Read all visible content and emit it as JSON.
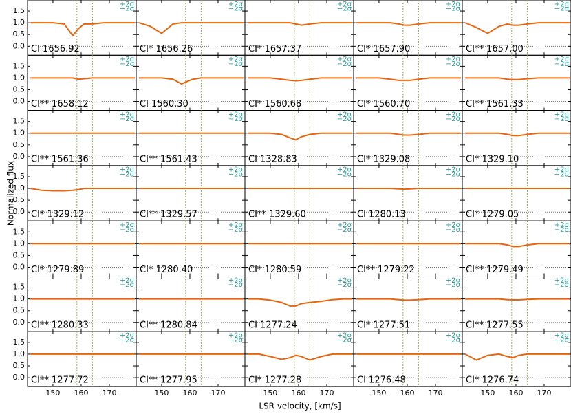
{
  "chart_data": {
    "type": "line",
    "x_label": "LSR velocity, [km/s]",
    "y_label": "Normalized flux",
    "sigma_labels": [
      "+2σ",
      "−2σ"
    ],
    "xlim": [
      141,
      179.5
    ],
    "ylim": [
      -0.38,
      1.97
    ],
    "xticks": [
      150,
      160,
      170
    ],
    "yticks": [
      {
        "value": 0,
        "label": "0.0"
      },
      {
        "value": 0.5,
        "label": "0.5"
      },
      {
        "value": 1,
        "label": "1.0"
      },
      {
        "value": 1.5,
        "label": "1.5"
      }
    ],
    "reference_velocities": [
      158.5,
      164
    ],
    "model_color": "#e8650e",
    "x": [
      142,
      146,
      150,
      154,
      157,
      159,
      161,
      164,
      168,
      172,
      176,
      179
    ],
    "panels": [
      {
        "label": "CI 1656.92",
        "model": [
          1,
          1,
          1,
          0.95,
          0.45,
          0.75,
          0.95,
          0.95,
          1,
          1,
          1,
          1
        ]
      },
      {
        "label": "CI* 1656.26",
        "model": [
          1,
          0.85,
          0.55,
          0.95,
          1,
          1,
          1,
          1,
          1,
          1,
          1,
          1
        ]
      },
      {
        "label": "CI* 1657.37",
        "model": [
          1,
          1,
          1,
          1,
          1,
          0.95,
          0.9,
          0.95,
          1,
          1,
          1,
          1
        ]
      },
      {
        "label": "CI* 1657.90",
        "model": [
          1,
          1,
          1,
          1,
          0.95,
          0.9,
          0.9,
          0.95,
          1,
          1,
          1,
          1
        ]
      },
      {
        "label": "CI** 1657.00",
        "model": [
          1,
          0.8,
          0.55,
          0.85,
          0.95,
          0.9,
          0.9,
          0.95,
          1,
          1,
          1,
          1
        ]
      },
      {
        "label": "CI** 1658.12",
        "model": [
          1,
          1,
          1,
          1,
          1,
          0.95,
          0.97,
          1,
          1,
          1,
          1,
          1
        ]
      },
      {
        "label": "CI 1560.30",
        "model": [
          1,
          1,
          1,
          0.95,
          0.75,
          0.85,
          0.95,
          1,
          1,
          1,
          1,
          1
        ]
      },
      {
        "label": "CI* 1560.68",
        "model": [
          1,
          1,
          1,
          0.95,
          0.9,
          0.88,
          0.9,
          0.95,
          1,
          1,
          1,
          1
        ]
      },
      {
        "label": "CI* 1560.70",
        "model": [
          1,
          1,
          1,
          0.95,
          0.9,
          0.9,
          0.9,
          0.95,
          1,
          1,
          1,
          1
        ]
      },
      {
        "label": "CI** 1561.33",
        "model": [
          1,
          1,
          1,
          1,
          0.95,
          0.93,
          0.93,
          0.97,
          1,
          1,
          1,
          1
        ]
      },
      {
        "label": "CI** 1561.36",
        "model": [
          1,
          1,
          1,
          1,
          1,
          1,
          1,
          1,
          1,
          1,
          1,
          1
        ]
      },
      {
        "label": "CI** 1561.43",
        "model": [
          1,
          1,
          1,
          1,
          1,
          1,
          1,
          1,
          1,
          1,
          1,
          1
        ]
      },
      {
        "label": "CI 1328.83",
        "model": [
          1,
          1,
          1,
          0.95,
          0.8,
          0.72,
          0.85,
          0.95,
          1,
          1,
          1,
          1
        ]
      },
      {
        "label": "CI* 1329.08",
        "model": [
          1,
          1,
          1,
          1,
          0.95,
          0.92,
          0.92,
          0.95,
          1,
          1,
          1,
          1
        ]
      },
      {
        "label": "CI* 1329.10",
        "model": [
          1,
          1,
          1,
          1,
          0.95,
          0.9,
          0.9,
          0.95,
          1,
          1,
          1,
          1
        ]
      },
      {
        "label": "CI* 1329.12",
        "model": [
          1,
          0.92,
          0.9,
          0.9,
          0.92,
          0.95,
          1,
          1,
          1,
          1,
          1,
          1
        ]
      },
      {
        "label": "CI** 1329.57",
        "model": [
          1,
          1,
          1,
          1,
          1,
          1,
          1,
          1,
          1,
          1,
          1,
          1
        ]
      },
      {
        "label": "CI** 1329.60",
        "model": [
          1,
          1,
          1,
          1,
          1,
          1,
          1,
          1,
          1,
          1,
          1,
          1
        ]
      },
      {
        "label": "CI 1280.13",
        "model": [
          1,
          1,
          1,
          1,
          0.98,
          0.97,
          0.98,
          1,
          1,
          1,
          1,
          1
        ]
      },
      {
        "label": "CI* 1279.05",
        "model": [
          1,
          1,
          1,
          1,
          1,
          1,
          1,
          1,
          1,
          1,
          1,
          1
        ]
      },
      {
        "label": "CI* 1279.89",
        "model": [
          1,
          1,
          1,
          1,
          1,
          1,
          1,
          1,
          1,
          1,
          1,
          1
        ]
      },
      {
        "label": "CI* 1280.40",
        "model": [
          1,
          1,
          1,
          1,
          1,
          1,
          1,
          1,
          1,
          1,
          1,
          1
        ]
      },
      {
        "label": "CI* 1280.59",
        "model": [
          1,
          1,
          1,
          1,
          1,
          1,
          1,
          1,
          1,
          1,
          1,
          1
        ]
      },
      {
        "label": "CI** 1279.22",
        "model": [
          1,
          1,
          1,
          1,
          1,
          1,
          1,
          1,
          1,
          1,
          1,
          1
        ]
      },
      {
        "label": "CI** 1279.49",
        "model": [
          1,
          1,
          1,
          1,
          0.95,
          0.88,
          0.88,
          0.95,
          1,
          1,
          1,
          1
        ]
      },
      {
        "label": "CI** 1280.33",
        "model": [
          1,
          1,
          1,
          1,
          1,
          1,
          1,
          1,
          1,
          1,
          1,
          1
        ]
      },
      {
        "label": "CI** 1280.84",
        "model": [
          1,
          1,
          1,
          1,
          1,
          1,
          1,
          1,
          1,
          1,
          1,
          1
        ]
      },
      {
        "label": "CI 1277.24",
        "model": [
          1,
          1,
          0.95,
          0.85,
          0.7,
          0.7,
          0.8,
          0.85,
          0.9,
          0.97,
          1,
          1
        ]
      },
      {
        "label": "CI* 1277.51",
        "model": [
          1,
          1,
          1,
          1,
          0.97,
          0.95,
          0.95,
          0.97,
          1,
          1,
          1,
          1
        ]
      },
      {
        "label": "CI** 1277.55",
        "model": [
          1,
          1,
          1,
          1,
          0.97,
          0.96,
          0.96,
          0.98,
          1,
          1,
          1,
          1
        ]
      },
      {
        "label": "CI** 1277.72",
        "model": [
          1,
          1,
          1,
          1,
          1,
          1,
          1,
          1,
          1,
          1,
          1,
          1
        ]
      },
      {
        "label": "CI** 1277.95",
        "model": [
          1,
          1,
          1,
          1,
          1,
          1,
          1,
          1,
          1,
          1,
          1,
          1
        ]
      },
      {
        "label": "CI* 1277.28",
        "model": [
          1,
          1,
          0.9,
          0.78,
          0.85,
          0.95,
          0.9,
          0.75,
          0.9,
          1,
          1,
          1
        ]
      },
      {
        "label": "CI 1276.48",
        "model": [
          1,
          1,
          1,
          1,
          1,
          1,
          1,
          1,
          1,
          1,
          1,
          1
        ]
      },
      {
        "label": "CI* 1276.74",
        "model": [
          1,
          0.75,
          0.95,
          1,
          0.9,
          0.85,
          0.95,
          1,
          1,
          1,
          1,
          1
        ]
      }
    ]
  }
}
